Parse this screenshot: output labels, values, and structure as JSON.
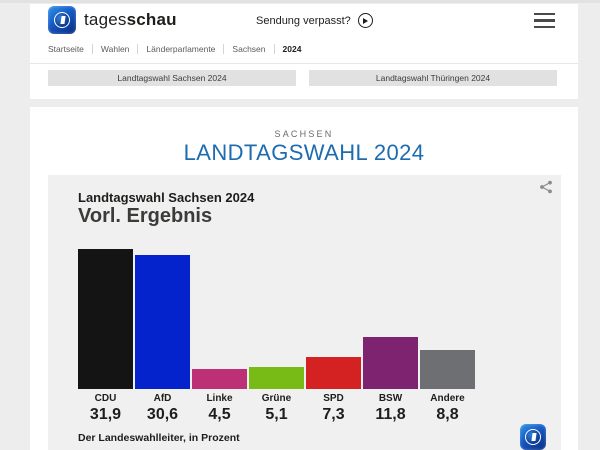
{
  "colors": {
    "page_bg": "#ededed",
    "card_bg": "#f0f0f0",
    "accent_blue": "#1d6cb0"
  },
  "header": {
    "brand": {
      "regular": "tages",
      "bold": "schau"
    },
    "sendung_verpasst": "Sendung verpasst?",
    "breadcrumb": [
      "Startseite",
      "Wahlen",
      "Länderparlamente",
      "Sachsen",
      "2024"
    ],
    "tabs": [
      {
        "label": "Landtagswahl Sachsen 2024"
      },
      {
        "label": "Landtagswahl Thüringen 2024"
      }
    ]
  },
  "main": {
    "kicker": "SACHSEN",
    "title": "LANDTAGSWAHL 2024"
  },
  "chart_data": {
    "type": "bar",
    "title": "Landtagswahl Sachsen 2024",
    "subtitle": "Vorl. Ergebnis",
    "source": "Der Landeswahlleiter, in Prozent",
    "categories": [
      "CDU",
      "AfD",
      "Linke",
      "Grüne",
      "SPD",
      "BSW",
      "Andere"
    ],
    "values": [
      31.9,
      30.6,
      4.5,
      5.1,
      7.3,
      11.8,
      8.8
    ],
    "value_labels": [
      "31,9",
      "30,6",
      "4,5",
      "5,1",
      "7,3",
      "11,8",
      "8,8"
    ],
    "bar_colors": [
      "#141414",
      "#0523cd",
      "#be3075",
      "#78ba16",
      "#d32221",
      "#7d2370",
      "#6e6f73"
    ],
    "ylabel": "Prozent",
    "xlabel": "",
    "ylim": [
      0,
      32
    ],
    "grid": false,
    "legend_position": "none"
  }
}
